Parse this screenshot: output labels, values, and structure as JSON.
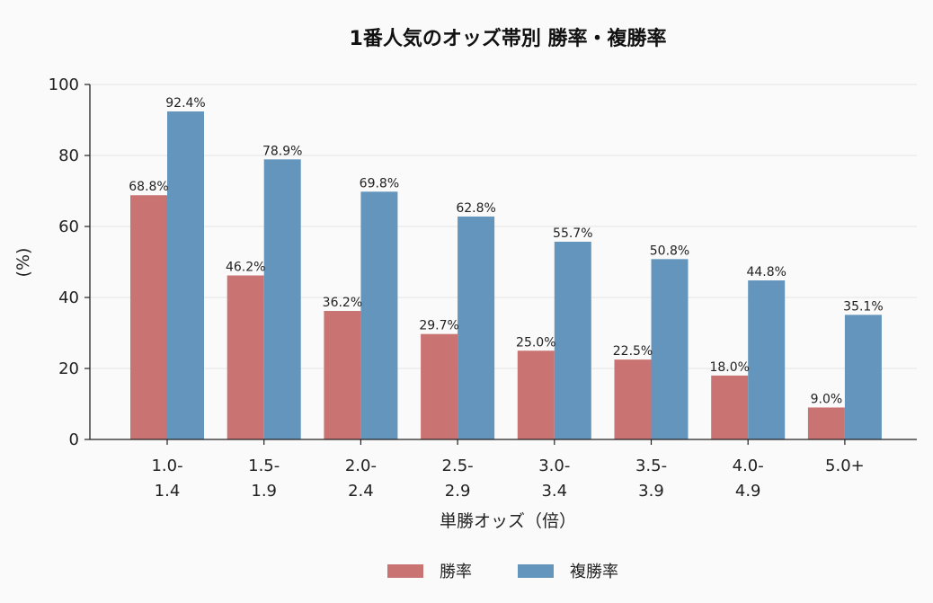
{
  "chart_data": {
    "type": "bar",
    "title": "1番人気のオッズ帯別 勝率・複勝率",
    "xlabel": "単勝オッズ（倍）",
    "ylabel": "(%)",
    "ylim": [
      0,
      100
    ],
    "yticks": [
      0,
      20,
      40,
      60,
      80,
      100
    ],
    "grid": true,
    "legend_position": "bottom-center",
    "categories": [
      [
        "1.0-",
        "1.4"
      ],
      [
        "1.5-",
        "1.9"
      ],
      [
        "2.0-",
        "2.4"
      ],
      [
        "2.5-",
        "2.9"
      ],
      [
        "3.0-",
        "3.4"
      ],
      [
        "3.5-",
        "3.9"
      ],
      [
        "4.0-",
        "4.9"
      ],
      [
        "5.0+"
      ]
    ],
    "series": [
      {
        "name": "勝率",
        "color": "#c97373",
        "values": [
          68.8,
          46.2,
          36.2,
          29.7,
          25.0,
          22.5,
          18.0,
          9.0
        ],
        "labels": [
          "68.8%",
          "46.2%",
          "36.2%",
          "29.7%",
          "25.0%",
          "22.5%",
          "18.0%",
          "9.0%"
        ]
      },
      {
        "name": "複勝率",
        "color": "#6495bc",
        "values": [
          92.4,
          78.9,
          69.8,
          62.8,
          55.7,
          50.8,
          44.8,
          35.1
        ],
        "labels": [
          "92.4%",
          "78.9%",
          "69.8%",
          "62.8%",
          "55.7%",
          "50.8%",
          "44.8%",
          "35.1%"
        ]
      }
    ]
  }
}
